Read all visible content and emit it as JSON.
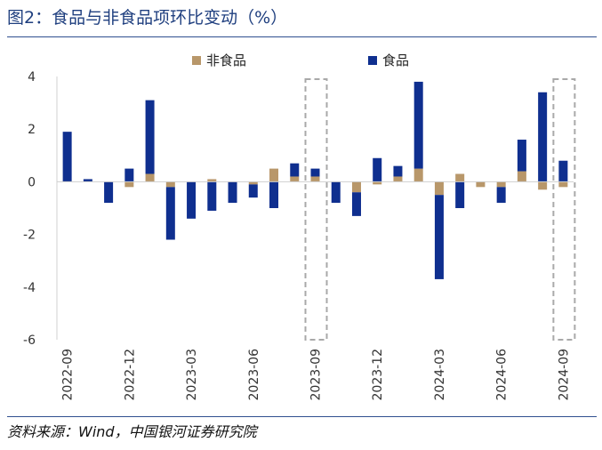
{
  "header": {
    "title": "图2：食品与非食品项环比变动（%）"
  },
  "footer": {
    "source": "资料来源：Wind，中国银河证券研究院"
  },
  "chart_data": {
    "type": "bar",
    "stacked": true,
    "title": "食品与非食品项环比变动（%）",
    "xlabel": "",
    "ylabel": "",
    "ylim": [
      -6,
      4
    ],
    "yticks": [
      4,
      2,
      0,
      -2,
      -4,
      -6
    ],
    "legend": "top-center",
    "categories": [
      "2022-09",
      "2022-10",
      "2022-11",
      "2022-12",
      "2023-01",
      "2023-02",
      "2023-03",
      "2023-04",
      "2023-05",
      "2023-06",
      "2023-07",
      "2023-08",
      "2023-09",
      "2023-10",
      "2023-11",
      "2023-12",
      "2024-01",
      "2024-02",
      "2024-03",
      "2024-04",
      "2024-05",
      "2024-06",
      "2024-07",
      "2024-08",
      "2024-09"
    ],
    "tick_labels": [
      "2022-09",
      "",
      "",
      "2022-12",
      "",
      "",
      "2023-03",
      "",
      "",
      "2023-06",
      "",
      "",
      "2023-09",
      "",
      "",
      "2023-12",
      "",
      "",
      "2024-03",
      "",
      "",
      "2024-06",
      "",
      "",
      "2024-09"
    ],
    "series": [
      {
        "name": "非食品",
        "color": "#b8976a",
        "values": [
          0.0,
          0.0,
          0.0,
          -0.2,
          0.3,
          -0.2,
          0.0,
          0.1,
          0.0,
          -0.1,
          0.5,
          0.2,
          0.2,
          0.0,
          -0.4,
          -0.1,
          0.2,
          0.5,
          -0.5,
          0.3,
          -0.2,
          -0.2,
          0.4,
          -0.3,
          -0.2
        ]
      },
      {
        "name": "食品",
        "color": "#0f2f8f",
        "values": [
          1.9,
          0.1,
          -0.8,
          0.5,
          2.8,
          -2.0,
          -1.4,
          -1.1,
          -0.8,
          -0.5,
          -1.0,
          0.5,
          0.3,
          -0.8,
          -0.9,
          0.9,
          0.4,
          3.3,
          -3.2,
          -1.0,
          0.0,
          -0.6,
          1.2,
          3.4,
          0.8
        ]
      }
    ],
    "highlight_boxes": [
      {
        "category": "2023-09",
        "ylim": [
          -6,
          3.9
        ]
      },
      {
        "category": "2024-09",
        "ylim": [
          -6,
          3.9
        ]
      }
    ]
  }
}
